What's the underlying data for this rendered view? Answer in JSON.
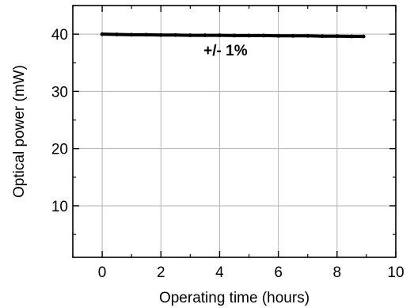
{
  "chart_data": {
    "type": "line",
    "title": "",
    "xlabel": "Operating time (hours)",
    "ylabel": "Optical power (mW)",
    "xlim": [
      -1,
      10
    ],
    "ylim": [
      1,
      45
    ],
    "x_ticks": [
      0,
      2,
      4,
      6,
      8,
      10
    ],
    "y_ticks": [
      10,
      20,
      30,
      40
    ],
    "grid": true,
    "legend": "none",
    "annotations": [
      {
        "text": "+/- 1%",
        "x": 4.2,
        "y": 36.3
      }
    ],
    "series": [
      {
        "color": "#000000",
        "x": [
          0,
          0.5,
          1,
          1.5,
          2,
          2.5,
          3,
          3.5,
          4,
          4.5,
          5,
          5.5,
          6,
          6.5,
          7,
          7.5,
          8,
          8.5,
          8.9
        ],
        "y": [
          40.0,
          39.95,
          39.9,
          39.9,
          39.85,
          39.85,
          39.8,
          39.8,
          39.8,
          39.75,
          39.75,
          39.75,
          39.7,
          39.7,
          39.7,
          39.65,
          39.65,
          39.6,
          39.6
        ]
      }
    ]
  }
}
